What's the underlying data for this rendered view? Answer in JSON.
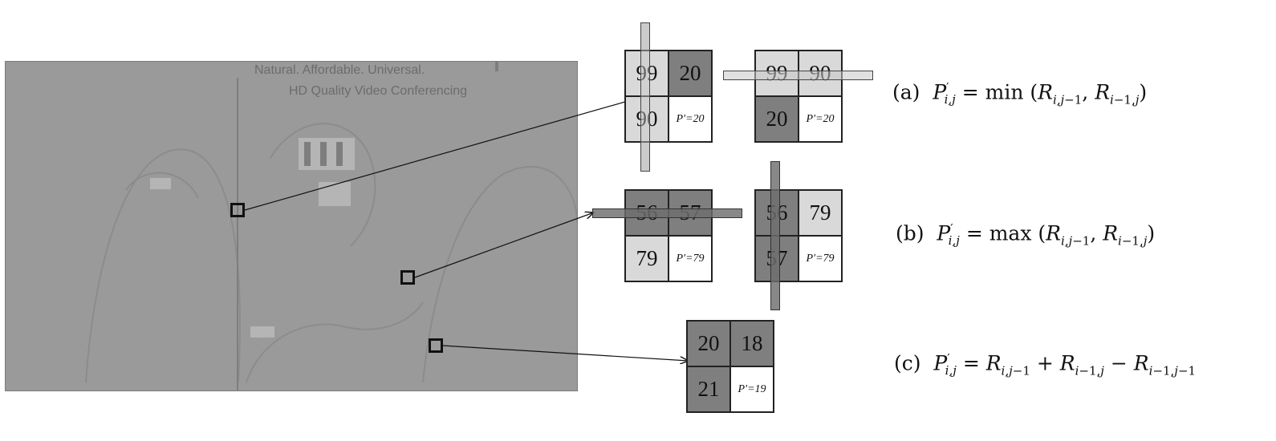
{
  "residual_image": {
    "caption_line1": "Natural. Affordable. Universal.",
    "caption_line2": "HD Quality Video Conferencing"
  },
  "examples": [
    {
      "label": "(a)",
      "formula_text": "P'i,j = min (Ri,j−1, Ri−1,j)",
      "left_grid": [
        "99",
        "20",
        "90",
        "P′=20"
      ],
      "right_grid": [
        "99",
        "90",
        "20",
        "P′=20"
      ]
    },
    {
      "label": "(b)",
      "formula_text": "P'i,j = max (Ri,j−1, Ri−1,j)",
      "left_grid": [
        "56",
        "57",
        "79",
        "P′=79"
      ],
      "right_grid": [
        "56",
        "79",
        "57",
        "P′=79"
      ]
    },
    {
      "label": "(c)",
      "formula_text": "P'i,j = Ri,j−1 + Ri−1,j − Ri−1,j−1",
      "grid": [
        "20",
        "18",
        "21",
        "P′=19"
      ]
    }
  ],
  "colors": {
    "dark_cell": "#7f7f7f",
    "light_cell": "#d9d9d9",
    "residual_background": "#9a9a9a"
  }
}
